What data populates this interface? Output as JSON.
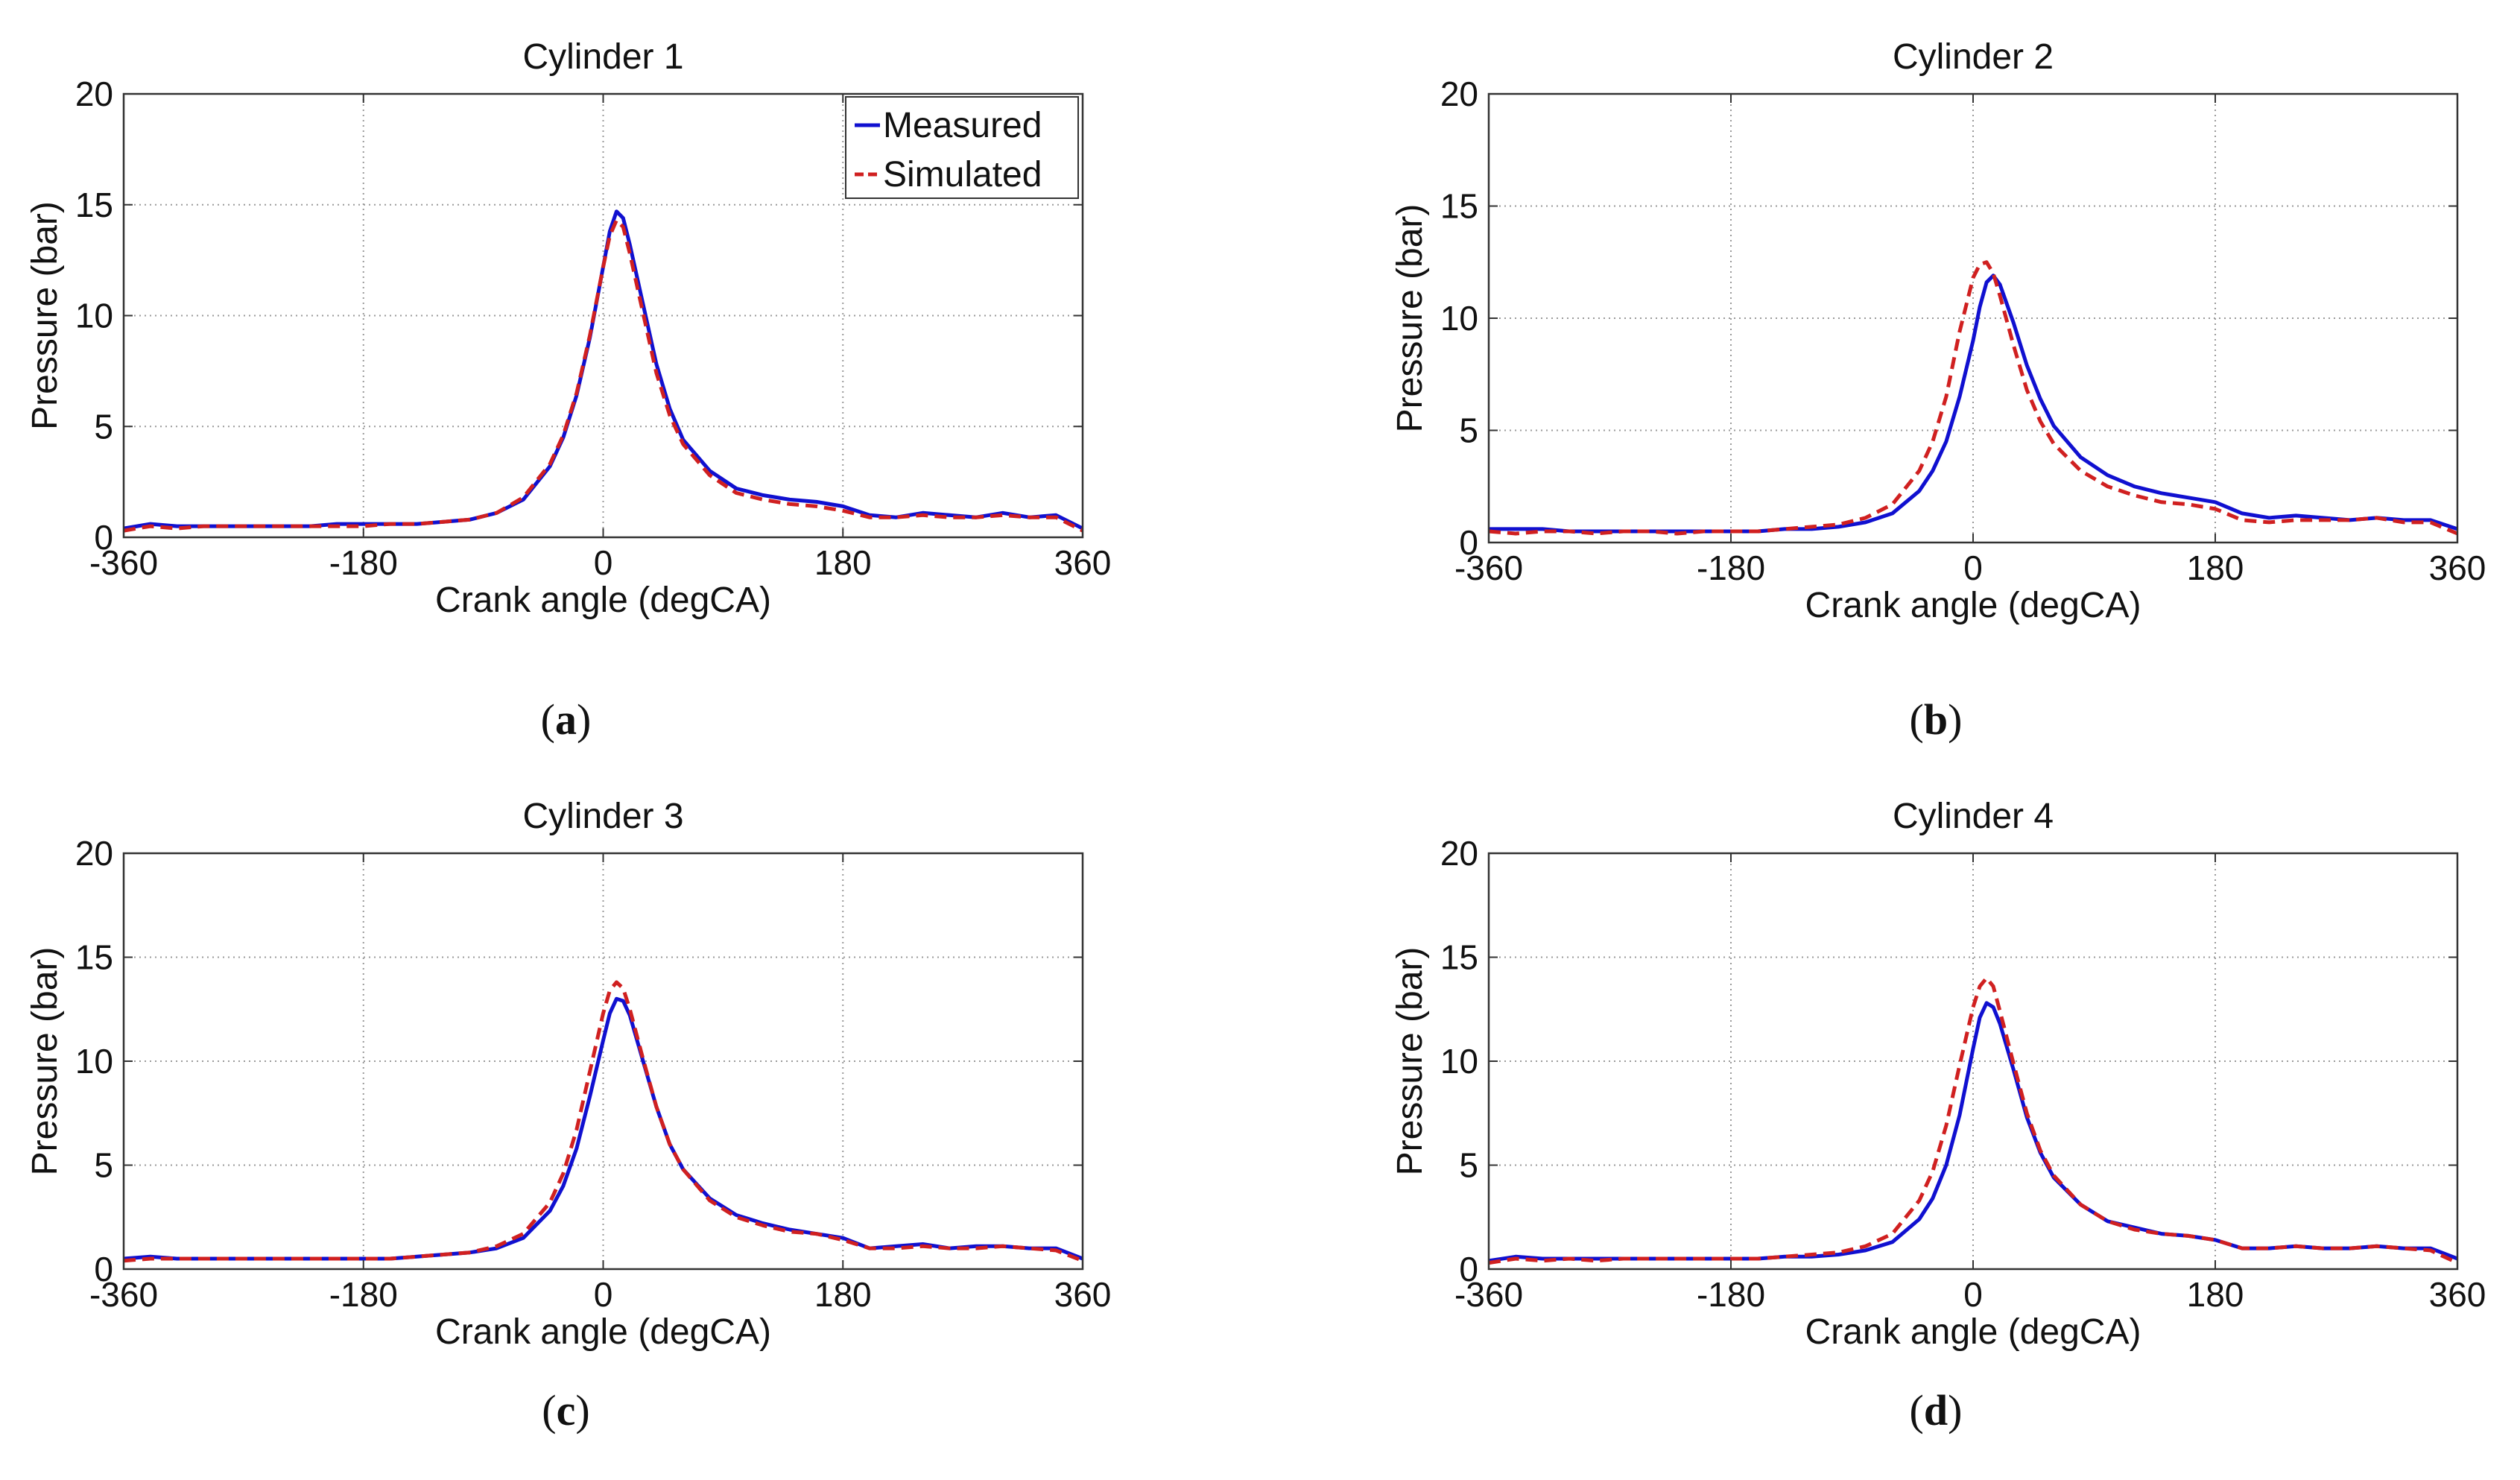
{
  "colors": {
    "measured": "#1010d0",
    "simulated": "#d02020",
    "grid": "#9a9a9a",
    "axis": "#333333"
  },
  "legend": {
    "measured": "Measured",
    "simulated": "Simulated"
  },
  "chart_data": [
    {
      "type": "line",
      "panel_label": "a",
      "title": "Cylinder 1",
      "xlabel": "Crank angle (degCA)",
      "ylabel": "Pressure (bar)",
      "xlim": [
        -360,
        360
      ],
      "ylim": [
        0,
        20
      ],
      "xticks": [
        -360,
        -180,
        0,
        180,
        360
      ],
      "yticks": [
        0,
        5,
        10,
        15,
        20
      ],
      "grid": true,
      "legend_position": "top-right",
      "x": [
        -360,
        -340,
        -320,
        -300,
        -280,
        -260,
        -240,
        -220,
        -200,
        -180,
        -160,
        -140,
        -120,
        -100,
        -80,
        -60,
        -40,
        -30,
        -20,
        -10,
        0,
        5,
        10,
        15,
        20,
        30,
        40,
        50,
        60,
        80,
        100,
        120,
        140,
        160,
        180,
        200,
        220,
        240,
        260,
        280,
        300,
        320,
        340,
        360
      ],
      "series": [
        {
          "name": "Measured",
          "values": [
            0.4,
            0.6,
            0.5,
            0.5,
            0.5,
            0.5,
            0.5,
            0.5,
            0.6,
            0.6,
            0.6,
            0.6,
            0.7,
            0.8,
            1.1,
            1.7,
            3.2,
            4.5,
            6.4,
            9.0,
            12.2,
            13.8,
            14.7,
            14.4,
            13.2,
            10.5,
            7.8,
            5.8,
            4.4,
            3.0,
            2.2,
            1.9,
            1.7,
            1.6,
            1.4,
            1.0,
            0.9,
            1.1,
            1.0,
            0.9,
            1.1,
            0.9,
            1.0,
            0.4
          ]
        },
        {
          "name": "Simulated",
          "values": [
            0.3,
            0.5,
            0.4,
            0.5,
            0.5,
            0.5,
            0.5,
            0.5,
            0.5,
            0.5,
            0.6,
            0.6,
            0.7,
            0.8,
            1.1,
            1.8,
            3.3,
            4.6,
            6.5,
            9.1,
            12.2,
            13.6,
            14.3,
            14.0,
            12.8,
            10.1,
            7.4,
            5.5,
            4.2,
            2.8,
            2.0,
            1.7,
            1.5,
            1.4,
            1.2,
            0.9,
            0.9,
            1.0,
            0.9,
            0.9,
            1.0,
            0.9,
            0.9,
            0.3
          ]
        }
      ]
    },
    {
      "type": "line",
      "panel_label": "b",
      "title": "Cylinder 2",
      "xlabel": "Crank angle (degCA)",
      "ylabel": "Pressure (bar)",
      "xlim": [
        -360,
        360
      ],
      "ylim": [
        0,
        20
      ],
      "xticks": [
        -360,
        -180,
        0,
        180,
        360
      ],
      "yticks": [
        0,
        5,
        10,
        15,
        20
      ],
      "grid": true,
      "x": [
        -360,
        -340,
        -320,
        -300,
        -280,
        -260,
        -240,
        -220,
        -200,
        -180,
        -160,
        -140,
        -120,
        -100,
        -80,
        -60,
        -40,
        -30,
        -20,
        -10,
        0,
        5,
        10,
        15,
        20,
        30,
        40,
        50,
        60,
        80,
        100,
        120,
        140,
        160,
        180,
        200,
        220,
        240,
        260,
        280,
        300,
        320,
        340,
        360
      ],
      "series": [
        {
          "name": "Measured",
          "values": [
            0.6,
            0.6,
            0.6,
            0.5,
            0.5,
            0.5,
            0.5,
            0.5,
            0.5,
            0.5,
            0.5,
            0.6,
            0.6,
            0.7,
            0.9,
            1.3,
            2.3,
            3.2,
            4.5,
            6.5,
            9.0,
            10.5,
            11.6,
            11.9,
            11.5,
            9.8,
            7.9,
            6.4,
            5.2,
            3.8,
            3.0,
            2.5,
            2.2,
            2.0,
            1.8,
            1.3,
            1.1,
            1.2,
            1.1,
            1.0,
            1.1,
            1.0,
            1.0,
            0.6
          ]
        },
        {
          "name": "Simulated",
          "values": [
            0.5,
            0.4,
            0.5,
            0.5,
            0.4,
            0.5,
            0.5,
            0.4,
            0.5,
            0.5,
            0.5,
            0.6,
            0.7,
            0.8,
            1.1,
            1.7,
            3.2,
            4.5,
            6.5,
            9.4,
            11.8,
            12.4,
            12.5,
            12.0,
            11.0,
            8.8,
            6.8,
            5.4,
            4.4,
            3.2,
            2.5,
            2.1,
            1.8,
            1.7,
            1.5,
            1.0,
            0.9,
            1.0,
            1.0,
            1.0,
            1.1,
            0.9,
            0.9,
            0.4
          ]
        }
      ]
    },
    {
      "type": "line",
      "panel_label": "c",
      "title": "Cylinder 3",
      "xlabel": "Crank angle (degCA)",
      "ylabel": "Pressure (bar)",
      "xlim": [
        -360,
        360
      ],
      "ylim": [
        0,
        20
      ],
      "xticks": [
        -360,
        -180,
        0,
        180,
        360
      ],
      "yticks": [
        0,
        5,
        10,
        15,
        20
      ],
      "grid": true,
      "x": [
        -360,
        -340,
        -320,
        -300,
        -280,
        -260,
        -240,
        -220,
        -200,
        -180,
        -160,
        -140,
        -120,
        -100,
        -80,
        -60,
        -40,
        -30,
        -20,
        -10,
        0,
        5,
        10,
        15,
        20,
        30,
        40,
        50,
        60,
        80,
        100,
        120,
        140,
        160,
        180,
        200,
        220,
        240,
        260,
        280,
        300,
        320,
        340,
        360
      ],
      "series": [
        {
          "name": "Measured",
          "values": [
            0.5,
            0.6,
            0.5,
            0.5,
            0.5,
            0.5,
            0.5,
            0.5,
            0.5,
            0.5,
            0.5,
            0.6,
            0.7,
            0.8,
            1.0,
            1.5,
            2.8,
            4.0,
            5.8,
            8.3,
            11.0,
            12.3,
            13.0,
            12.9,
            12.2,
            10.0,
            7.8,
            6.0,
            4.8,
            3.4,
            2.6,
            2.2,
            1.9,
            1.7,
            1.5,
            1.0,
            1.1,
            1.2,
            1.0,
            1.1,
            1.1,
            1.0,
            1.0,
            0.5
          ]
        },
        {
          "name": "Simulated",
          "values": [
            0.4,
            0.5,
            0.5,
            0.5,
            0.5,
            0.5,
            0.5,
            0.5,
            0.5,
            0.5,
            0.5,
            0.6,
            0.7,
            0.8,
            1.1,
            1.7,
            3.2,
            4.6,
            6.7,
            9.5,
            12.3,
            13.4,
            13.8,
            13.5,
            12.5,
            10.1,
            7.8,
            6.0,
            4.8,
            3.3,
            2.5,
            2.1,
            1.8,
            1.7,
            1.4,
            1.0,
            1.0,
            1.1,
            1.0,
            1.0,
            1.1,
            1.0,
            0.9,
            0.4
          ]
        }
      ]
    },
    {
      "type": "line",
      "panel_label": "d",
      "title": "Cylinder 4",
      "xlabel": "Crank angle (degCA)",
      "ylabel": "Pressure (bar)",
      "xlim": [
        -360,
        360
      ],
      "ylim": [
        0,
        20
      ],
      "xticks": [
        -360,
        -180,
        0,
        180,
        360
      ],
      "yticks": [
        0,
        5,
        10,
        15,
        20
      ],
      "grid": true,
      "x": [
        -360,
        -340,
        -320,
        -300,
        -280,
        -260,
        -240,
        -220,
        -200,
        -180,
        -160,
        -140,
        -120,
        -100,
        -80,
        -60,
        -40,
        -30,
        -20,
        -10,
        0,
        5,
        10,
        15,
        20,
        30,
        40,
        50,
        60,
        80,
        100,
        120,
        140,
        160,
        180,
        200,
        220,
        240,
        260,
        280,
        300,
        320,
        340,
        360
      ],
      "series": [
        {
          "name": "Measured",
          "values": [
            0.4,
            0.6,
            0.5,
            0.5,
            0.5,
            0.5,
            0.5,
            0.5,
            0.5,
            0.5,
            0.5,
            0.6,
            0.6,
            0.7,
            0.9,
            1.3,
            2.4,
            3.4,
            5.0,
            7.4,
            10.6,
            12.1,
            12.8,
            12.6,
            11.8,
            9.6,
            7.3,
            5.6,
            4.4,
            3.1,
            2.3,
            2.0,
            1.7,
            1.6,
            1.4,
            1.0,
            1.0,
            1.1,
            1.0,
            1.0,
            1.1,
            1.0,
            1.0,
            0.5
          ]
        },
        {
          "name": "Simulated",
          "values": [
            0.3,
            0.5,
            0.4,
            0.5,
            0.4,
            0.5,
            0.5,
            0.5,
            0.5,
            0.5,
            0.5,
            0.6,
            0.7,
            0.8,
            1.1,
            1.7,
            3.3,
            4.7,
            6.9,
            9.8,
            12.6,
            13.6,
            14.0,
            13.6,
            12.4,
            9.9,
            7.5,
            5.7,
            4.5,
            3.1,
            2.3,
            1.9,
            1.7,
            1.6,
            1.4,
            1.0,
            1.0,
            1.1,
            1.0,
            1.0,
            1.1,
            1.0,
            0.9,
            0.3
          ]
        }
      ]
    }
  ]
}
